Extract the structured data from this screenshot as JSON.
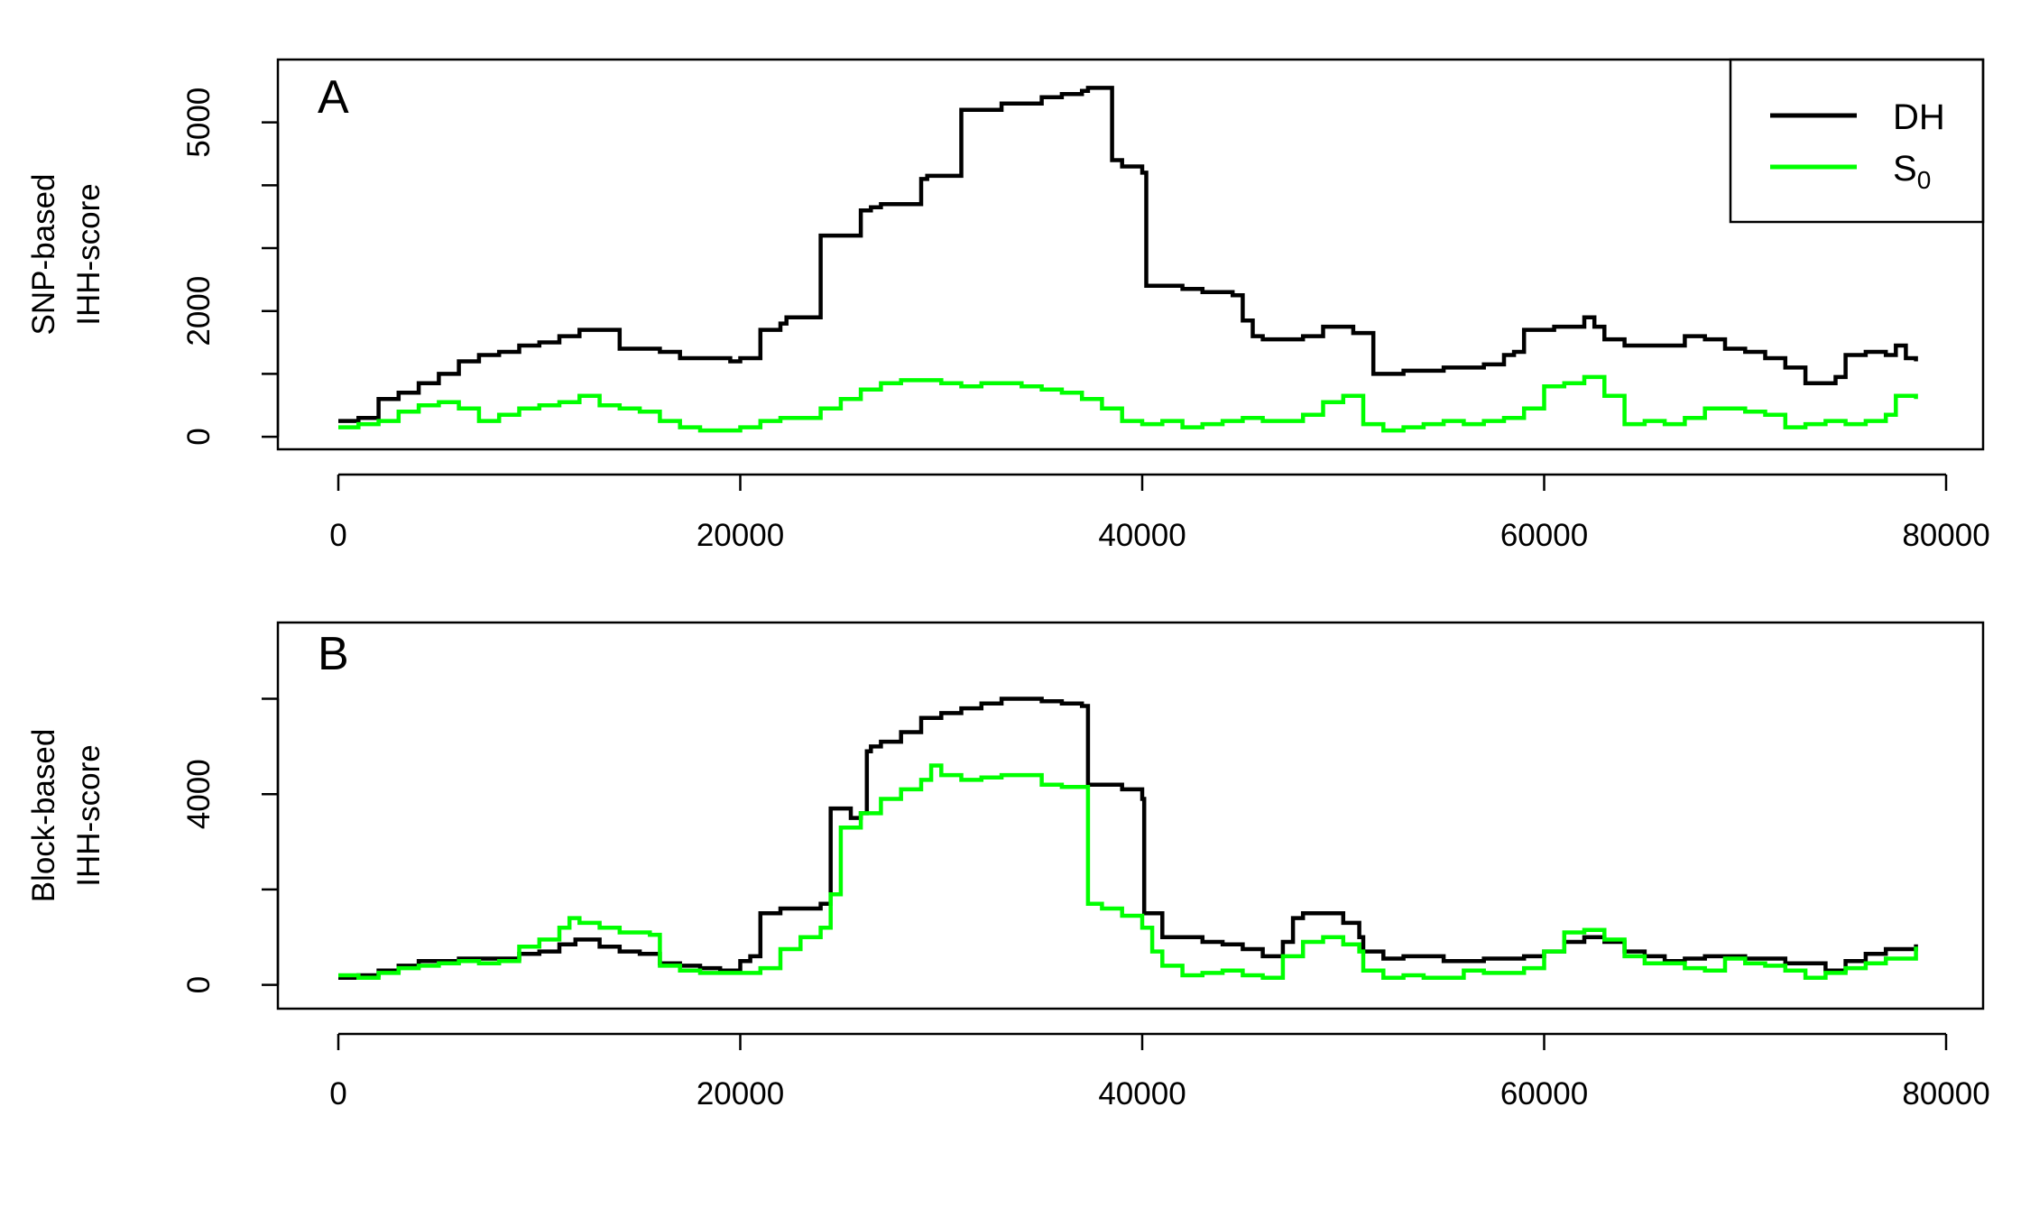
{
  "colors": {
    "DH": "#000000",
    "S0": "#00ff00"
  },
  "chart_data": [
    {
      "type": "line",
      "panel_label": "A",
      "ylabel_lines": [
        "SNP-based",
        "IHH-score"
      ],
      "xlim": [
        0,
        80000
      ],
      "ylim": [
        -200,
        6000
      ],
      "x_ticks": [
        0,
        20000,
        40000,
        60000,
        80000
      ],
      "x_tick_labels": [
        "0",
        "20000",
        "40000",
        "60000",
        "80000"
      ],
      "y_ticks": [
        0,
        1000,
        2000,
        3000,
        4000,
        5000
      ],
      "y_tick_labels": [
        "0",
        "",
        "2000",
        "",
        "",
        "5000"
      ],
      "legend": {
        "position": "top-right",
        "entries": [
          {
            "label": "DH",
            "series": "DH"
          },
          {
            "label": "S",
            "subscript": "0",
            "series": "S0"
          }
        ]
      },
      "series": [
        {
          "name": "DH",
          "x": [
            0,
            1000,
            2000,
            3000,
            4000,
            5000,
            6000,
            7000,
            8000,
            9000,
            10000,
            11000,
            12000,
            13500,
            14000,
            16000,
            17000,
            18000,
            19000,
            19500,
            20000,
            21000,
            22000,
            22300,
            24000,
            26000,
            26500,
            27000,
            29000,
            29300,
            31000,
            33000,
            35000,
            36000,
            37000,
            37300,
            38500,
            39000,
            39500,
            40000,
            40200,
            42000,
            43000,
            44000,
            44500,
            45000,
            45500,
            46000,
            48000,
            49000,
            50500,
            51000,
            51500,
            53000,
            55000,
            57000,
            58000,
            58500,
            59000,
            60500,
            61500,
            62000,
            62500,
            63000,
            64000,
            66000,
            67000,
            68000,
            69000,
            70000,
            71000,
            72000,
            73000,
            74000,
            74500,
            75000,
            76000,
            77000,
            77500,
            78000,
            78500
          ],
          "y": [
            250,
            300,
            600,
            700,
            850,
            1000,
            1200,
            1300,
            1350,
            1450,
            1500,
            1600,
            1700,
            1700,
            1400,
            1350,
            1250,
            1250,
            1250,
            1200,
            1250,
            1700,
            1800,
            1900,
            3200,
            3600,
            3650,
            3700,
            4100,
            4150,
            5200,
            5300,
            5400,
            5450,
            5500,
            5550,
            4400,
            4300,
            4300,
            4200,
            2400,
            2350,
            2300,
            2300,
            2250,
            1850,
            1600,
            1550,
            1600,
            1750,
            1650,
            1650,
            1000,
            1050,
            1100,
            1150,
            1300,
            1350,
            1700,
            1750,
            1750,
            1900,
            1750,
            1550,
            1450,
            1450,
            1600,
            1550,
            1400,
            1350,
            1250,
            1100,
            850,
            850,
            950,
            1300,
            1350,
            1300,
            1450,
            1250,
            1200
          ]
        },
        {
          "name": "S0",
          "x": [
            0,
            1000,
            2000,
            3000,
            4000,
            5000,
            6000,
            7000,
            8000,
            9000,
            10000,
            11000,
            12000,
            13000,
            14000,
            15000,
            16000,
            17000,
            18000,
            19000,
            20000,
            21000,
            22000,
            23000,
            24000,
            25000,
            26000,
            27000,
            28000,
            29000,
            30000,
            31000,
            32000,
            33000,
            34000,
            35000,
            36000,
            37000,
            38000,
            39000,
            40000,
            41000,
            42000,
            43000,
            44000,
            45000,
            46000,
            47000,
            48000,
            49000,
            50000,
            51000,
            52000,
            53000,
            54000,
            55000,
            56000,
            57000,
            58000,
            59000,
            60000,
            61000,
            62000,
            63000,
            64000,
            65000,
            66000,
            67000,
            68000,
            69000,
            70000,
            71000,
            72000,
            73000,
            74000,
            75000,
            76000,
            77000,
            77500,
            78500
          ],
          "y": [
            150,
            200,
            250,
            400,
            500,
            550,
            450,
            250,
            350,
            450,
            500,
            550,
            650,
            500,
            450,
            400,
            250,
            150,
            100,
            100,
            150,
            250,
            300,
            300,
            450,
            600,
            750,
            850,
            900,
            900,
            850,
            800,
            850,
            850,
            800,
            750,
            700,
            600,
            450,
            250,
            200,
            250,
            150,
            200,
            250,
            300,
            250,
            250,
            350,
            550,
            650,
            200,
            100,
            150,
            200,
            250,
            200,
            250,
            300,
            450,
            800,
            850,
            950,
            650,
            200,
            250,
            200,
            300,
            450,
            450,
            400,
            350,
            150,
            200,
            250,
            200,
            250,
            350,
            650,
            600
          ]
        }
      ]
    },
    {
      "type": "line",
      "panel_label": "B",
      "ylabel_lines": [
        "Block-based",
        "IHH-score"
      ],
      "xlim": [
        0,
        80000
      ],
      "ylim": [
        -500,
        7600
      ],
      "x_ticks": [
        0,
        20000,
        40000,
        60000,
        80000
      ],
      "x_tick_labels": [
        "0",
        "20000",
        "40000",
        "60000",
        "80000"
      ],
      "y_ticks": [
        0,
        2000,
        4000,
        6000
      ],
      "y_tick_labels": [
        "0",
        "",
        "4000",
        ""
      ],
      "series": [
        {
          "name": "DH",
          "x": [
            0,
            1000,
            2000,
            3000,
            4000,
            5000,
            6000,
            7000,
            8000,
            9000,
            10000,
            11000,
            11800,
            13000,
            14000,
            15000,
            16000,
            17000,
            18000,
            19000,
            20000,
            20500,
            21000,
            22000,
            23000,
            24000,
            24500,
            25500,
            26000,
            26300,
            26500,
            27000,
            28000,
            29000,
            30000,
            31000,
            32000,
            33000,
            34000,
            35000,
            36000,
            37000,
            37300,
            38000,
            39000,
            40000,
            40100,
            41000,
            43000,
            44000,
            45000,
            46000,
            47000,
            47500,
            48000,
            49000,
            50000,
            50800,
            51000,
            52000,
            53000,
            55000,
            57000,
            59000,
            60000,
            61000,
            62000,
            63000,
            64000,
            65000,
            66000,
            67000,
            68000,
            70000,
            72000,
            74000,
            75000,
            76000,
            77000,
            78500
          ],
          "y": [
            150,
            200,
            300,
            400,
            500,
            500,
            550,
            550,
            550,
            650,
            700,
            850,
            950,
            800,
            700,
            650,
            450,
            400,
            350,
            300,
            500,
            600,
            1500,
            1600,
            1600,
            1700,
            3700,
            3500,
            3600,
            4900,
            5000,
            5100,
            5300,
            5600,
            5700,
            5800,
            5900,
            6000,
            6000,
            5950,
            5900,
            5850,
            4200,
            4200,
            4100,
            3900,
            1500,
            1000,
            900,
            850,
            750,
            600,
            900,
            1400,
            1500,
            1500,
            1300,
            1000,
            700,
            550,
            600,
            500,
            550,
            600,
            700,
            900,
            1000,
            900,
            700,
            600,
            500,
            550,
            600,
            550,
            450,
            300,
            500,
            650,
            750,
            850
          ]
        },
        {
          "name": "S0",
          "x": [
            0,
            1000,
            2000,
            3000,
            4000,
            5000,
            6000,
            7000,
            8000,
            9000,
            10000,
            11000,
            11500,
            12000,
            13000,
            14000,
            15500,
            16000,
            17000,
            18000,
            19000,
            20000,
            21000,
            22000,
            23000,
            24000,
            24500,
            25000,
            26000,
            27000,
            28000,
            29000,
            29500,
            30000,
            31000,
            32000,
            33000,
            34000,
            35000,
            36000,
            37000,
            37300,
            38000,
            39000,
            40000,
            40500,
            41000,
            42000,
            43000,
            44000,
            45000,
            46000,
            47000,
            48000,
            49000,
            50000,
            50800,
            51000,
            52000,
            53000,
            54000,
            55000,
            56000,
            57000,
            58000,
            59000,
            60000,
            61000,
            62000,
            63000,
            64000,
            65000,
            66000,
            67000,
            68000,
            69000,
            70000,
            71000,
            72000,
            73000,
            74000,
            75000,
            76000,
            77000,
            78500
          ],
          "y": [
            200,
            150,
            250,
            350,
            400,
            450,
            500,
            450,
            500,
            800,
            950,
            1200,
            1400,
            1300,
            1200,
            1100,
            1050,
            400,
            300,
            250,
            250,
            250,
            350,
            750,
            1000,
            1200,
            1900,
            3300,
            3600,
            3900,
            4100,
            4300,
            4600,
            4400,
            4300,
            4350,
            4400,
            4400,
            4200,
            4150,
            4150,
            1700,
            1600,
            1450,
            1200,
            700,
            400,
            200,
            250,
            300,
            200,
            150,
            600,
            900,
            1000,
            850,
            700,
            300,
            150,
            200,
            150,
            150,
            300,
            250,
            250,
            350,
            700,
            1100,
            1150,
            950,
            600,
            450,
            450,
            350,
            300,
            550,
            450,
            400,
            300,
            150,
            250,
            350,
            450,
            550,
            800
          ]
        }
      ]
    }
  ]
}
